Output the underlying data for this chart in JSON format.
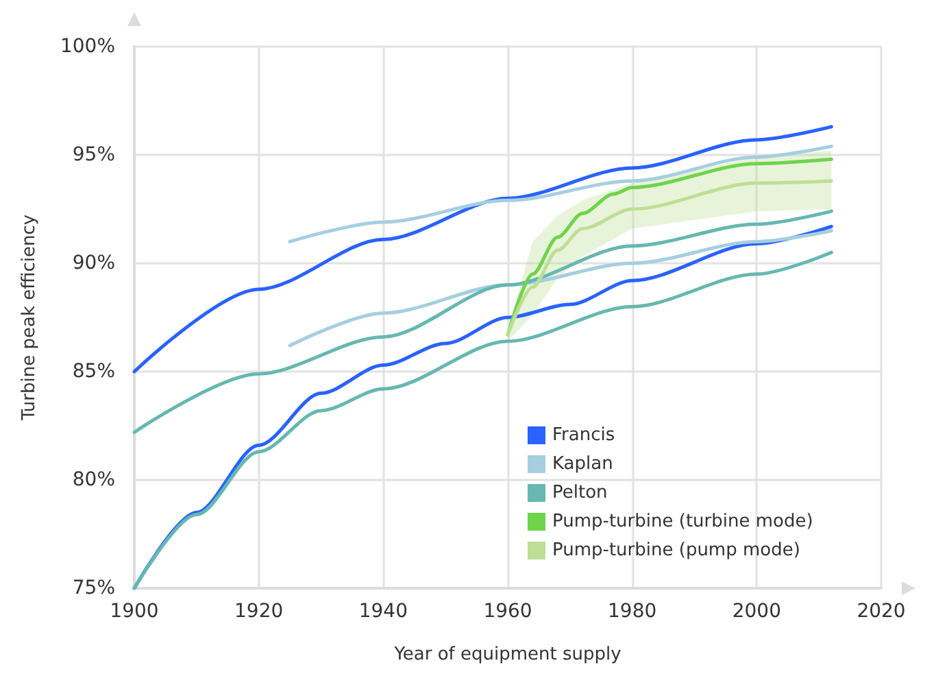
{
  "chart_data": {
    "type": "line",
    "xlabel": "Year of equipment supply",
    "ylabel": "Turbine peak efficiency",
    "xlim": [
      1900,
      2020
    ],
    "xticks": [
      1900,
      1920,
      1940,
      1960,
      1980,
      2000,
      2020
    ],
    "ylim": [
      75,
      100
    ],
    "yticks": [
      {
        "value": 75,
        "label": "75%"
      },
      {
        "value": 80,
        "label": "80%"
      },
      {
        "value": 85,
        "label": "85%"
      },
      {
        "value": 90,
        "label": "90%"
      },
      {
        "value": 95,
        "label": "95%"
      },
      {
        "value": 100,
        "label": "100%"
      }
    ],
    "grid": true,
    "legend": "bottom right",
    "marker": "none",
    "line_style": "solid",
    "series": [
      {
        "name": "Francis",
        "color": "#2962ff",
        "x": [
          1900,
          1920,
          1940,
          1960,
          1980,
          2000,
          2012
        ],
        "values": [
          85.0,
          88.8,
          91.1,
          93.0,
          94.4,
          95.7,
          96.3
        ]
      },
      {
        "color": "#2962ff",
        "x": [
          1900,
          1910,
          1920,
          1930,
          1940,
          1950,
          1960,
          1970,
          1980,
          2000,
          2012
        ],
        "values": [
          75.0,
          78.5,
          81.6,
          84.0,
          85.3,
          86.3,
          87.5,
          88.1,
          89.2,
          90.9,
          91.7
        ]
      },
      {
        "name": "Kaplan",
        "color": "#a6cfe0",
        "x": [
          1925,
          1940,
          1960,
          1980,
          2000,
          2012
        ],
        "values": [
          91.0,
          91.9,
          92.9,
          93.8,
          94.9,
          95.4
        ]
      },
      {
        "color": "#a6cfe0",
        "x": [
          1925,
          1940,
          1960,
          1980,
          2000,
          2012
        ],
        "values": [
          86.2,
          87.7,
          89.0,
          90.0,
          91.0,
          91.5
        ]
      },
      {
        "name": "Pelton",
        "color": "#66b8b0",
        "x": [
          1900,
          1920,
          1940,
          1960,
          1980,
          2000,
          2012
        ],
        "values": [
          82.2,
          84.9,
          86.6,
          89.0,
          90.8,
          91.8,
          92.4
        ]
      },
      {
        "color": "#66b8b0",
        "x": [
          1900,
          1910,
          1920,
          1930,
          1940,
          1960,
          1980,
          2000,
          2012
        ],
        "values": [
          75.0,
          78.4,
          81.3,
          83.2,
          84.2,
          86.4,
          88.0,
          89.5,
          90.5
        ]
      },
      {
        "name": "Pump-turbine (turbine mode)",
        "color": "#6fd44b",
        "x": [
          1960,
          1964,
          1968,
          1972,
          1977,
          1980,
          2000,
          2012
        ],
        "values": [
          86.7,
          89.5,
          91.2,
          92.3,
          93.2,
          93.5,
          94.6,
          94.8
        ]
      },
      {
        "name": "Pump-turbine (pump mode)",
        "color": "#bddf95",
        "x": [
          1960,
          1964,
          1968,
          1972,
          1980,
          2000,
          2012
        ],
        "values": [
          86.7,
          88.9,
          90.6,
          91.6,
          92.5,
          93.7,
          93.8
        ],
        "lower": [
          86.4,
          87.6,
          89.3,
          90.3,
          91.6,
          92.4,
          92.5
        ],
        "upper": [
          87.0,
          91.0,
          92.2,
          92.9,
          93.7,
          94.9,
          95.2
        ]
      }
    ]
  }
}
